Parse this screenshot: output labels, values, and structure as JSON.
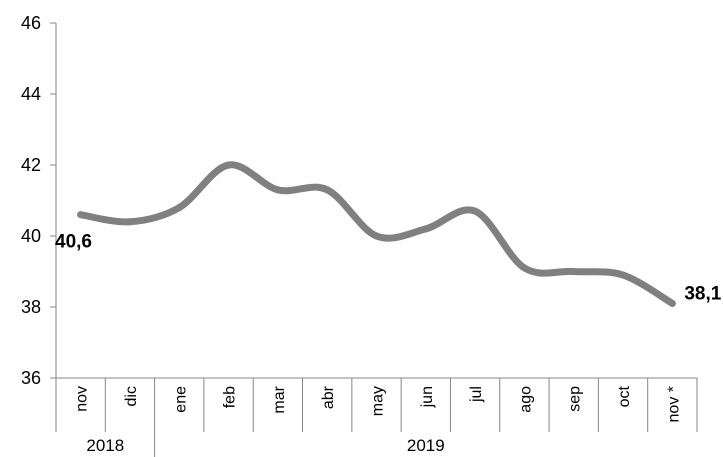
{
  "chart_data": {
    "type": "line",
    "title": "",
    "xlabel": "",
    "ylabel": "",
    "categories": [
      "nov",
      "dic",
      "ene",
      "feb",
      "mar",
      "abr",
      "may",
      "jun",
      "jul",
      "ago",
      "sep",
      "oct",
      "nov *"
    ],
    "year_groups": [
      {
        "label": "2018",
        "count": 2
      },
      {
        "label": "2019",
        "count": 11
      }
    ],
    "series": [
      {
        "values": [
          40.6,
          40.4,
          40.8,
          42.0,
          41.3,
          41.3,
          40.0,
          40.2,
          40.7,
          39.1,
          39.0,
          38.9,
          38.1
        ],
        "color": "#808080"
      }
    ],
    "ylim": [
      36,
      46
    ],
    "yticks": [
      36,
      38,
      40,
      42,
      44,
      46
    ],
    "grid": false,
    "data_labels": [
      {
        "index": 0,
        "text": "40,6"
      },
      {
        "index": 12,
        "text": "38,1"
      }
    ]
  }
}
